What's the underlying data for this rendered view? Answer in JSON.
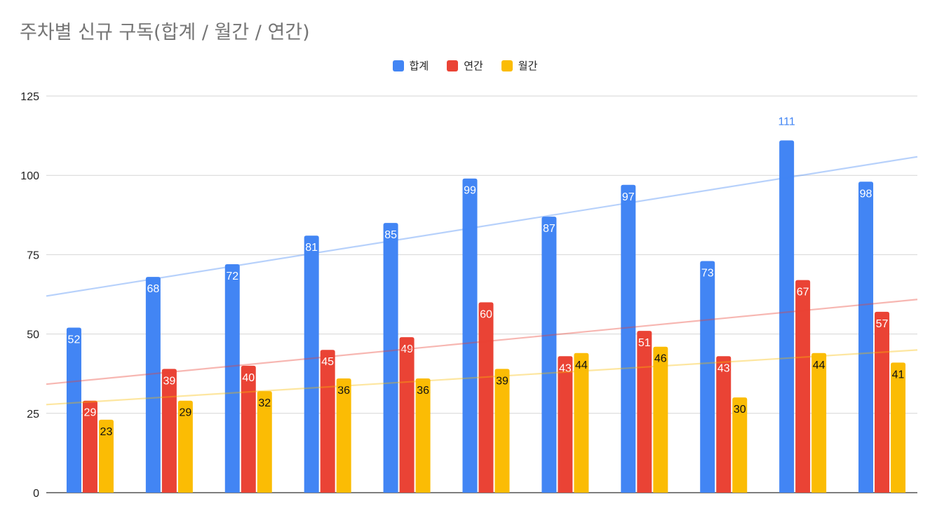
{
  "chart_data": {
    "type": "bar",
    "title": "주차별 신규 구독(합계 / 월간 / 연간)",
    "categories": [
      "",
      "",
      "",
      "",
      "",
      "",
      "",
      "",
      "",
      "",
      ""
    ],
    "series": [
      {
        "name": "합계",
        "color": "#4285F4",
        "values": [
          52,
          68,
          72,
          81,
          85,
          99,
          87,
          97,
          73,
          111,
          98
        ]
      },
      {
        "name": "연간",
        "color": "#EA4335",
        "values": [
          29,
          39,
          40,
          45,
          49,
          60,
          43,
          51,
          43,
          67,
          57
        ]
      },
      {
        "name": "월간",
        "color": "#FBBC04",
        "values": [
          23,
          29,
          32,
          36,
          36,
          39,
          44,
          46,
          30,
          44,
          41
        ]
      }
    ],
    "trendlines": true,
    "ylim": [
      0,
      125
    ],
    "yticks": [
      0,
      25,
      50,
      75,
      100,
      125
    ],
    "grid": true,
    "legend": "top-center",
    "xlabel": "",
    "ylabel": ""
  }
}
